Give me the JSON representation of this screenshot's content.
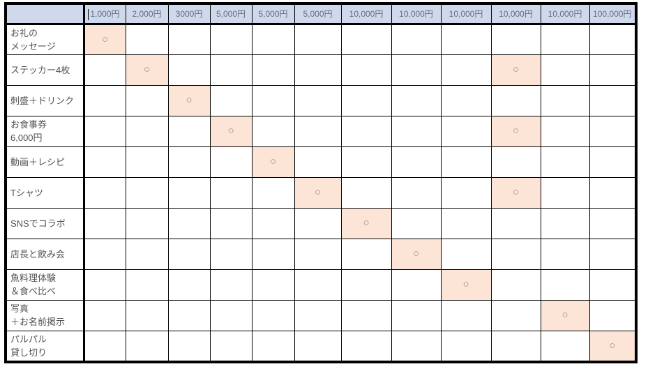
{
  "table": {
    "corner_label": "",
    "mark_symbol": "○",
    "text_cursor_column_index": 0,
    "columns": [
      "1,000円",
      "2,000円",
      "3000円",
      "5,000円",
      "5,000円",
      "5,000円",
      "10,000円",
      "10,000円",
      "10,000円",
      "10,000円",
      "10,000円",
      "100,000円"
    ],
    "rows": [
      {
        "label": "お礼の\nメッセージ",
        "marked_columns": [
          1
        ]
      },
      {
        "label": "ステッカー4枚",
        "marked_columns": [
          2,
          10
        ]
      },
      {
        "label": "刺盛＋ドリンク",
        "marked_columns": [
          3
        ]
      },
      {
        "label": "お食事券\n6,000円",
        "marked_columns": [
          4,
          10
        ]
      },
      {
        "label": "動画＋レシピ",
        "marked_columns": [
          5
        ]
      },
      {
        "label": "Tシャツ",
        "marked_columns": [
          6,
          10
        ]
      },
      {
        "label": "SNSでコラボ",
        "marked_columns": [
          7
        ]
      },
      {
        "label": "店長と飲み会",
        "marked_columns": [
          8
        ]
      },
      {
        "label": "魚料理体験\n＆食べ比べ",
        "marked_columns": [
          9
        ]
      },
      {
        "label": "写真\n＋お名前掲示",
        "marked_columns": [
          11
        ]
      },
      {
        "label": "パルパル\n貸し切り",
        "marked_columns": [
          12
        ]
      }
    ],
    "colors": {
      "header_bg": "#d0d8eb",
      "header_text": "#636e80",
      "label_text": "#525252",
      "highlight_bg": "#fce4d6",
      "mark": "#908a84",
      "grid": "#000000"
    }
  }
}
